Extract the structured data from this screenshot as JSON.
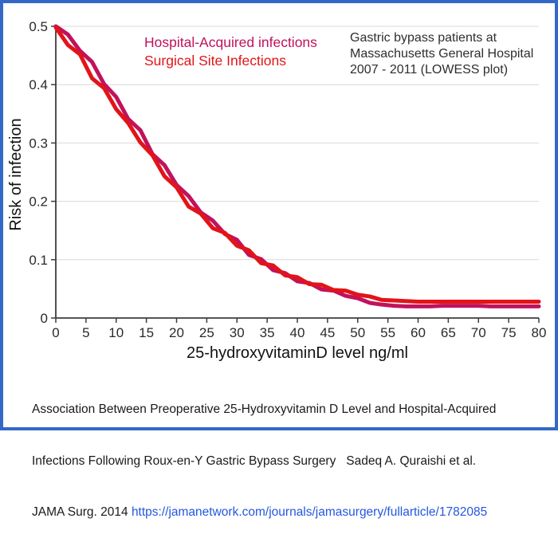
{
  "frame": {
    "border_color": "#3468C8",
    "background": "#ffffff"
  },
  "legend": {
    "items": [
      {
        "label": "Hospital-Acquired infections",
        "color": "#C1125C"
      },
      {
        "label": "Surgical Site Infections",
        "color": "#E21418"
      }
    ]
  },
  "annotation": {
    "line1": "Gastric bypass patients at",
    "line2": "Massachusetts General Hospital",
    "line3": "2007 - 2011 (LOWESS plot)",
    "color": "#2e2e2e"
  },
  "caption": {
    "line1": "Association Between Preoperative 25-Hydroxyvitamin D Level and Hospital-Acquired",
    "line2": "Infections Following Roux-en-Y Gastric Bypass Surgery   Sadeq A. Quraishi et al.",
    "line3_prefix": "JAMA Surg. 2014 ",
    "link_text": "https://jamanetwork.com/journals/jamasurgery/fullarticle/1782085",
    "link_color": "#2457E0"
  },
  "chart_data": {
    "type": "line",
    "title": "",
    "xlabel": "25-hydroxyvitaminD level ng/ml",
    "ylabel": "Risk of infection",
    "xlim": [
      0,
      80
    ],
    "ylim": [
      0,
      0.5
    ],
    "x_ticks": [
      0,
      5,
      10,
      15,
      20,
      25,
      30,
      35,
      40,
      45,
      50,
      55,
      60,
      65,
      70,
      75,
      80
    ],
    "y_ticks": [
      0,
      0.1,
      0.2,
      0.3,
      0.4,
      0.5
    ],
    "y_tick_labels": [
      "0",
      "0.1",
      "0.2",
      "0.3",
      "0.4",
      "0.5"
    ],
    "grid": "horizontal",
    "gridline_color": "#d8d8d8",
    "axis_color": "#3d3d3d",
    "legend_position": "top-inside",
    "x": [
      0,
      2,
      4,
      6,
      8,
      10,
      12,
      14,
      16,
      18,
      20,
      22,
      24,
      26,
      28,
      30,
      32,
      34,
      36,
      38,
      40,
      42,
      44,
      46,
      48,
      50,
      52,
      54,
      56,
      58,
      60,
      62,
      64,
      66,
      68,
      70,
      72,
      74,
      76,
      78,
      80
    ],
    "series": [
      {
        "name": "Hospital-Acquired infections",
        "color": "#C1125C",
        "values": [
          0.5,
          0.486,
          0.458,
          0.439,
          0.401,
          0.379,
          0.341,
          0.322,
          0.281,
          0.262,
          0.228,
          0.209,
          0.181,
          0.167,
          0.144,
          0.134,
          0.108,
          0.101,
          0.082,
          0.077,
          0.063,
          0.06,
          0.049,
          0.047,
          0.038,
          0.034,
          0.026,
          0.023,
          0.021,
          0.02,
          0.02,
          0.02,
          0.021,
          0.021,
          0.021,
          0.021,
          0.02,
          0.02,
          0.02,
          0.02,
          0.02
        ]
      },
      {
        "name": "Surgical Site Infections",
        "color": "#E21418",
        "values": [
          0.498,
          0.468,
          0.452,
          0.411,
          0.394,
          0.358,
          0.334,
          0.301,
          0.279,
          0.243,
          0.224,
          0.191,
          0.179,
          0.154,
          0.146,
          0.124,
          0.116,
          0.094,
          0.09,
          0.073,
          0.07,
          0.058,
          0.057,
          0.048,
          0.047,
          0.04,
          0.037,
          0.031,
          0.03,
          0.029,
          0.028,
          0.028,
          0.028,
          0.028,
          0.028,
          0.028,
          0.028,
          0.028,
          0.028,
          0.028,
          0.028
        ]
      }
    ]
  }
}
